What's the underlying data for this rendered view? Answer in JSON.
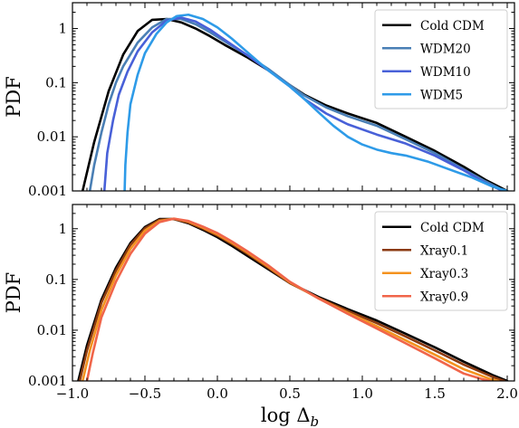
{
  "chart_data": [
    {
      "type": "line",
      "ylabel": "PDF",
      "xlabel": "",
      "xlim": [
        -1.0,
        2.05
      ],
      "ylim": [
        0.001,
        3
      ],
      "yscale": "log",
      "legend_position": "top-right",
      "grid": false,
      "y_tick_labels": [
        "0.001",
        "0.01",
        "0.1",
        "1"
      ],
      "x_tick_labels": [],
      "series": [
        {
          "name": "Cold CDM",
          "color": "#000000",
          "x": [
            -0.93,
            -0.85,
            -0.75,
            -0.65,
            -0.55,
            -0.45,
            -0.35,
            -0.25,
            -0.15,
            -0.05,
            0.05,
            0.2,
            0.35,
            0.5,
            0.6,
            0.75,
            0.9,
            1.1,
            1.3,
            1.5,
            1.7,
            1.85,
            2.0
          ],
          "y": [
            0.001,
            0.008,
            0.07,
            0.33,
            0.9,
            1.45,
            1.5,
            1.3,
            1.0,
            0.72,
            0.5,
            0.3,
            0.17,
            0.09,
            0.06,
            0.038,
            0.027,
            0.018,
            0.01,
            0.0055,
            0.0028,
            0.0016,
            0.001
          ]
        },
        {
          "name": "WDM20",
          "color": "#4a7fb5",
          "x": [
            -0.88,
            -0.85,
            -0.8,
            -0.75,
            -0.7,
            -0.65,
            -0.55,
            -0.45,
            -0.35,
            -0.25,
            -0.15,
            -0.05,
            0.05,
            0.2,
            0.35,
            0.5,
            0.6,
            0.75,
            0.9,
            1.1,
            1.3,
            1.5,
            1.7,
            1.85,
            1.98
          ],
          "y": [
            0.001,
            0.003,
            0.012,
            0.04,
            0.1,
            0.2,
            0.55,
            1.05,
            1.5,
            1.5,
            1.2,
            0.85,
            0.58,
            0.33,
            0.18,
            0.09,
            0.058,
            0.035,
            0.024,
            0.016,
            0.009,
            0.005,
            0.0025,
            0.0015,
            0.001
          ]
        },
        {
          "name": "WDM10",
          "color": "#4860d8",
          "x": [
            -0.78,
            -0.76,
            -0.72,
            -0.68,
            -0.62,
            -0.55,
            -0.45,
            -0.35,
            -0.25,
            -0.15,
            -0.05,
            0.05,
            0.2,
            0.35,
            0.5,
            0.6,
            0.75,
            0.9,
            1.1,
            1.3,
            1.5,
            1.7,
            1.85,
            1.97
          ],
          "y": [
            0.001,
            0.005,
            0.02,
            0.06,
            0.16,
            0.38,
            0.85,
            1.4,
            1.6,
            1.35,
            0.95,
            0.62,
            0.33,
            0.17,
            0.085,
            0.05,
            0.027,
            0.017,
            0.011,
            0.0075,
            0.0045,
            0.0024,
            0.0014,
            0.001
          ]
        },
        {
          "name": "WDM5",
          "color": "#2e9be8",
          "x": [
            -0.64,
            -0.635,
            -0.62,
            -0.6,
            -0.55,
            -0.5,
            -0.42,
            -0.35,
            -0.28,
            -0.2,
            -0.1,
            0.0,
            0.1,
            0.2,
            0.35,
            0.5,
            0.6,
            0.7,
            0.8,
            0.9,
            1.0,
            1.1,
            1.2,
            1.3,
            1.45,
            1.6,
            1.75,
            1.9,
            2.0
          ],
          "y": [
            0.001,
            0.003,
            0.012,
            0.04,
            0.14,
            0.35,
            0.8,
            1.3,
            1.7,
            1.8,
            1.5,
            1.05,
            0.65,
            0.38,
            0.17,
            0.085,
            0.05,
            0.028,
            0.016,
            0.01,
            0.0072,
            0.0058,
            0.005,
            0.0045,
            0.0035,
            0.0025,
            0.0018,
            0.0012,
            0.001
          ]
        }
      ]
    },
    {
      "type": "line",
      "ylabel": "PDF",
      "xlabel": "log Δb",
      "xlim": [
        -1.0,
        2.05
      ],
      "ylim": [
        0.001,
        3
      ],
      "yscale": "log",
      "legend_position": "top-right",
      "grid": false,
      "y_tick_labels": [
        "0.001",
        "0.01",
        "0.1",
        "1"
      ],
      "x_tick_labels": [
        "−1.0",
        "−0.5",
        "0.0",
        "0.5",
        "1.0",
        "1.5",
        "2.0"
      ],
      "x_ticks": [
        -1.0,
        -0.5,
        0.0,
        0.5,
        1.0,
        1.5,
        2.0
      ],
      "series": [
        {
          "name": "Cold CDM",
          "color": "#000000",
          "x": [
            -0.96,
            -0.9,
            -0.8,
            -0.7,
            -0.6,
            -0.5,
            -0.4,
            -0.3,
            -0.2,
            -0.1,
            0.0,
            0.1,
            0.2,
            0.35,
            0.5,
            0.7,
            0.9,
            1.1,
            1.3,
            1.5,
            1.7,
            1.9,
            2.0
          ],
          "y": [
            0.001,
            0.005,
            0.04,
            0.17,
            0.52,
            1.08,
            1.55,
            1.55,
            1.28,
            0.95,
            0.68,
            0.46,
            0.3,
            0.16,
            0.085,
            0.045,
            0.026,
            0.0155,
            0.0085,
            0.0046,
            0.0024,
            0.0013,
            0.001
          ]
        },
        {
          "name": "Xray0.1",
          "color": "#8b3a10",
          "x": [
            -0.95,
            -0.9,
            -0.8,
            -0.7,
            -0.6,
            -0.5,
            -0.4,
            -0.3,
            -0.2,
            -0.1,
            0.0,
            0.1,
            0.2,
            0.35,
            0.5,
            0.7,
            0.9,
            1.1,
            1.3,
            1.5,
            1.7,
            1.9,
            1.98
          ],
          "y": [
            0.001,
            0.004,
            0.035,
            0.15,
            0.48,
            1.02,
            1.5,
            1.55,
            1.32,
            1.0,
            0.73,
            0.5,
            0.33,
            0.17,
            0.085,
            0.043,
            0.024,
            0.0138,
            0.0075,
            0.004,
            0.0021,
            0.0012,
            0.001
          ]
        },
        {
          "name": "Xray0.3",
          "color": "#f4921e",
          "x": [
            -0.93,
            -0.88,
            -0.8,
            -0.7,
            -0.6,
            -0.5,
            -0.4,
            -0.3,
            -0.2,
            -0.1,
            0.0,
            0.1,
            0.2,
            0.35,
            0.5,
            0.7,
            0.9,
            1.1,
            1.3,
            1.5,
            1.7,
            1.88,
            1.94
          ],
          "y": [
            0.001,
            0.004,
            0.025,
            0.12,
            0.4,
            0.92,
            1.42,
            1.58,
            1.38,
            1.05,
            0.77,
            0.53,
            0.35,
            0.18,
            0.088,
            0.042,
            0.022,
            0.012,
            0.0063,
            0.0033,
            0.0017,
            0.0011,
            0.001
          ]
        },
        {
          "name": "Xray0.9",
          "color": "#f0654a",
          "x": [
            -0.9,
            -0.86,
            -0.8,
            -0.7,
            -0.6,
            -0.5,
            -0.4,
            -0.3,
            -0.2,
            -0.1,
            0.0,
            0.1,
            0.2,
            0.35,
            0.5,
            0.7,
            0.9,
            1.1,
            1.3,
            1.5,
            1.7,
            1.82,
            1.88
          ],
          "y": [
            0.001,
            0.0035,
            0.018,
            0.09,
            0.32,
            0.8,
            1.35,
            1.58,
            1.42,
            1.1,
            0.82,
            0.56,
            0.37,
            0.19,
            0.09,
            0.042,
            0.021,
            0.0108,
            0.0055,
            0.0028,
            0.0014,
            0.0011,
            0.001
          ]
        }
      ]
    }
  ]
}
